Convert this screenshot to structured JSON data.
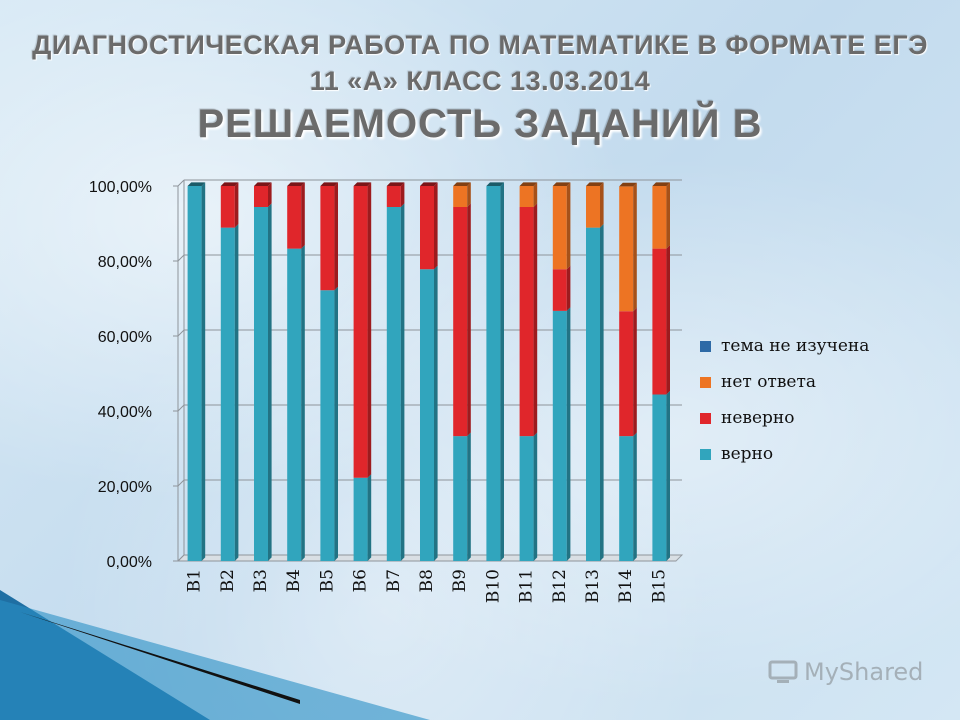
{
  "slide": {
    "title_line1": "ДИАГНОСТИЧЕСКАЯ РАБОТА ПО МАТЕМАТИКЕ В ФОРМАТЕ ЕГЭ",
    "title_line2": "11 «А» КЛАСС 13.03.2014",
    "title_line3": "РЕШАЕМОСТЬ ЗАДАНИЙ В",
    "watermark": "MyShared"
  },
  "colors": {
    "correct": "#31a5bd",
    "wrong": "#e0262b",
    "no_answer": "#ed7423",
    "not_studied": "#2e6aa6"
  },
  "chart_data": {
    "type": "bar",
    "stacked": true,
    "percent": true,
    "categories": [
      "B1",
      "B2",
      "B3",
      "B4",
      "B5",
      "B6",
      "B7",
      "B8",
      "B9",
      "B10",
      "B11",
      "B12",
      "B13",
      "B14",
      "B15"
    ],
    "series": [
      {
        "name": "верно",
        "color": "#31a5bd",
        "values": [
          100,
          88.9,
          94.4,
          83.3,
          72.2,
          22.2,
          94.4,
          77.8,
          33.3,
          100,
          33.3,
          66.7,
          88.9,
          33.3,
          44.4
        ]
      },
      {
        "name": "неверно",
        "color": "#e0262b",
        "values": [
          0,
          11.1,
          5.6,
          16.7,
          27.8,
          77.8,
          5.6,
          22.2,
          61.1,
          0,
          61.1,
          11.1,
          0,
          33.3,
          38.9
        ]
      },
      {
        "name": "нет ответа",
        "color": "#ed7423",
        "values": [
          0,
          0,
          0,
          0,
          0,
          0,
          0,
          0,
          5.6,
          0,
          5.6,
          22.2,
          11.1,
          33.3,
          16.7
        ]
      },
      {
        "name": "тема не изучена",
        "color": "#2e6aa6",
        "values": [
          0,
          0,
          0,
          0,
          0,
          0,
          0,
          0,
          0,
          0,
          0,
          0,
          0,
          0,
          0
        ]
      }
    ],
    "yticks": [
      "0,00%",
      "20,00%",
      "40,00%",
      "60,00%",
      "80,00%",
      "100,00%"
    ],
    "ylim": [
      0,
      100
    ],
    "grid": true,
    "legend_position": "right",
    "legend_order": [
      "тема не изучена",
      "нет ответа",
      "неверно",
      "верно"
    ]
  }
}
